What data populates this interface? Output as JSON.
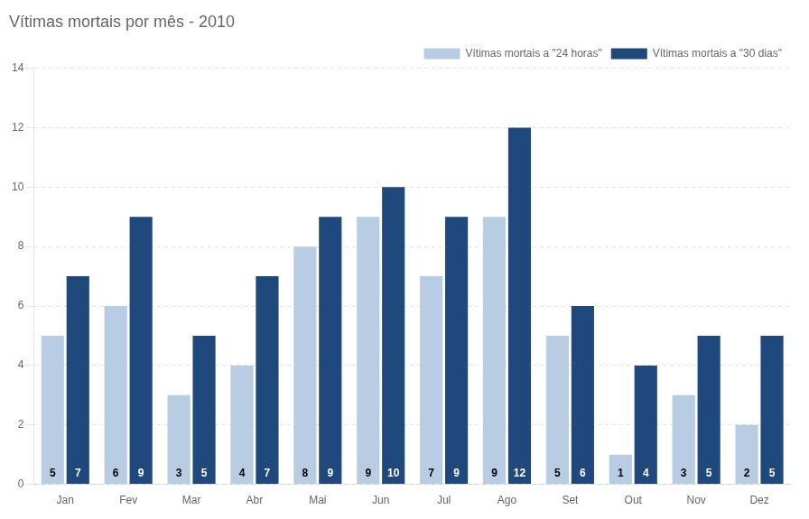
{
  "chart_data": {
    "type": "bar",
    "title": "Vítimas mortais por mês - 2010",
    "categories": [
      "Jan",
      "Fev",
      "Mar",
      "Abr",
      "Mai",
      "Jun",
      "Jul",
      "Ago",
      "Set",
      "Out",
      "Nov",
      "Dez"
    ],
    "series": [
      {
        "name": "Vítimas mortais a \"24 horas\"",
        "color": "#b8cce4",
        "values": [
          5,
          6,
          3,
          4,
          8,
          9,
          7,
          9,
          5,
          1,
          3,
          2
        ]
      },
      {
        "name": "Vítimas mortais a \"30 dias\"",
        "color": "#1f497d",
        "values": [
          7,
          9,
          5,
          7,
          9,
          10,
          9,
          12,
          6,
          4,
          5,
          5
        ]
      }
    ],
    "ylim": [
      0,
      14
    ],
    "yticks": [
      0,
      2,
      4,
      6,
      8,
      10,
      12,
      14
    ],
    "grid": true,
    "legend": "upper right",
    "data_labels": true
  }
}
